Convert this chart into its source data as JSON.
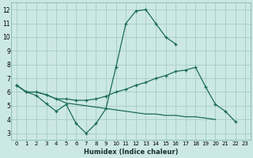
{
  "xlabel": "Humidex (Indice chaleur)",
  "bg_color": "#cce8e4",
  "grid_color": "#aacfcb",
  "line_color": "#1a6b5a",
  "xlim": [
    -0.5,
    23.5
  ],
  "ylim": [
    2.5,
    12.5
  ],
  "yticks": [
    3,
    4,
    5,
    6,
    7,
    8,
    9,
    10,
    11,
    12
  ],
  "xticks": [
    0,
    1,
    2,
    3,
    4,
    5,
    6,
    7,
    8,
    9,
    10,
    11,
    12,
    13,
    14,
    15,
    16,
    17,
    18,
    19,
    20,
    21,
    22,
    23
  ],
  "line1_x": [
    0,
    1,
    2,
    3,
    4,
    5,
    6,
    7,
    8,
    9,
    10,
    11,
    12,
    13,
    14,
    15,
    16,
    17,
    18,
    19,
    20,
    21,
    22,
    23
  ],
  "line1_y": [
    6.5,
    6.0,
    5.75,
    5.15,
    4.6,
    5.1,
    3.7,
    3.0,
    3.7,
    4.8,
    7.8,
    11.0,
    11.9,
    12.0,
    11.0,
    10.0,
    9.5,
    null,
    null,
    null,
    null,
    null,
    null,
    null
  ],
  "line2_x": [
    0,
    1,
    2,
    3,
    4,
    5,
    6,
    7,
    8,
    9,
    10,
    11,
    12,
    13,
    14,
    15,
    16,
    17,
    18,
    19,
    20,
    21,
    22,
    23
  ],
  "line2_y": [
    6.5,
    6.0,
    6.0,
    5.8,
    5.5,
    5.2,
    5.1,
    5.0,
    4.9,
    4.8,
    4.7,
    4.6,
    4.5,
    4.4,
    4.4,
    4.3,
    4.3,
    4.2,
    4.2,
    4.1,
    4.0,
    null,
    null,
    null
  ],
  "line3_x": [
    0,
    1,
    2,
    3,
    4,
    5,
    6,
    7,
    8,
    9,
    10,
    11,
    12,
    13,
    14,
    15,
    16,
    17,
    18,
    19,
    20,
    21,
    22,
    23
  ],
  "line3_y": [
    6.5,
    6.0,
    6.0,
    5.8,
    5.5,
    5.5,
    5.4,
    5.4,
    5.5,
    5.7,
    6.0,
    6.2,
    6.5,
    6.7,
    7.0,
    7.2,
    7.5,
    7.6,
    7.8,
    6.4,
    5.1,
    4.6,
    3.85,
    null
  ]
}
